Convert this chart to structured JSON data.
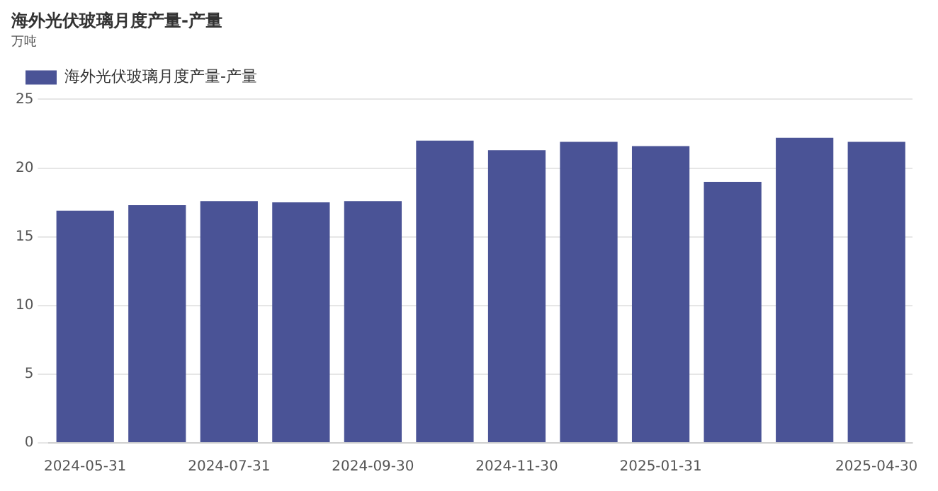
{
  "chart_data": {
    "type": "bar",
    "title": "海外光伏玻璃月度产量-产量",
    "ylabel": "万吨",
    "categories": [
      "2024-05-31",
      null,
      "2024-07-31",
      null,
      "2024-09-30",
      null,
      "2024-11-30",
      null,
      "2025-01-31",
      null,
      null,
      "2025-04-30"
    ],
    "series": [
      {
        "name": "海外光伏玻璃月度产量-产量",
        "color": "#4a5396",
        "values": [
          16.9,
          17.3,
          17.6,
          17.5,
          17.6,
          22.0,
          21.3,
          21.9,
          21.6,
          19.0,
          22.2,
          21.9
        ]
      }
    ],
    "ylim": [
      0,
      25
    ],
    "yticks": [
      0,
      5,
      10,
      15,
      20,
      25
    ],
    "grid": "y",
    "legend": "top left"
  }
}
